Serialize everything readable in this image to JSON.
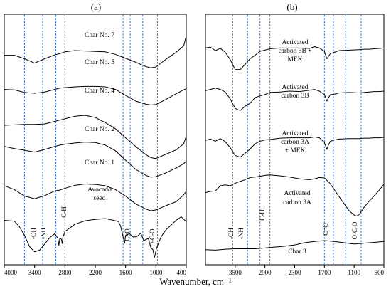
{
  "chart_data": [
    {
      "type": "line",
      "panel_label": "(a)",
      "xlim": [
        4000,
        400
      ],
      "x_reversed": true,
      "x_ticks": [
        "4000",
        "3400",
        "2800",
        "2200",
        "1600",
        "1000",
        "400"
      ],
      "x_tick_values": [
        4000,
        3400,
        2800,
        2200,
        1600,
        1000,
        400
      ],
      "ylabel": "",
      "grid": false,
      "reference_lines_x": [
        3600,
        3240,
        2980,
        2800,
        1650,
        1510,
        1260,
        970
      ],
      "series": [
        {
          "name": "Char No. 7",
          "x": [
            4000,
            3800,
            3600,
            3400,
            3200,
            3000,
            2900,
            2800,
            2600,
            2400,
            2200,
            2000,
            1800,
            1600,
            1400,
            1200,
            1100,
            1000,
            800,
            600,
            450,
            400
          ],
          "y": [
            46.5,
            46.5,
            45.7,
            44.7,
            45.7,
            46.6,
            46.9,
            47.3,
            47.6,
            47.5,
            47.4,
            47.3,
            46.7,
            45.8,
            44.9,
            43.9,
            43.6,
            43.8,
            45.6,
            47.2,
            48.7,
            51
          ]
        },
        {
          "name": "Char No. 5",
          "x": [
            4000,
            3800,
            3600,
            3400,
            3200,
            3000,
            2900,
            2800,
            2600,
            2400,
            2200,
            2000,
            1800,
            1600,
            1400,
            1200,
            1100,
            1000,
            800,
            600,
            450,
            400
          ],
          "y": [
            38.6,
            38.5,
            37.9,
            37.7,
            38,
            38.6,
            38.9,
            39,
            39.2,
            39.3,
            39.3,
            39.2,
            38.6,
            37.2,
            35.9,
            35.2,
            35,
            35.1,
            36.3,
            37.6,
            38.5,
            38.8
          ]
        },
        {
          "name": "Char No. 4",
          "x": [
            4000,
            3800,
            3600,
            3400,
            3200,
            3000,
            2900,
            2800,
            2600,
            2400,
            2200,
            2000,
            1800,
            1600,
            1400,
            1200,
            1100,
            1000,
            800,
            600,
            450,
            400
          ],
          "y": [
            30.3,
            30.4,
            30.5,
            30.5,
            30.6,
            31.2,
            31.5,
            31.8,
            32.4,
            32.6,
            32.1,
            30.9,
            29.5,
            27.4,
            25.4,
            23.5,
            22.8,
            22.6,
            23.6,
            24.6,
            26,
            27.8
          ]
        },
        {
          "name": "Char No. 2",
          "x": [
            4000,
            3800,
            3600,
            3400,
            3200,
            3000,
            2900,
            2800,
            2600,
            2400,
            2200,
            2000,
            1800,
            1600,
            1400,
            1200,
            1100,
            1000,
            800,
            600,
            450,
            400
          ],
          "y": [
            25.4,
            24.9,
            24.5,
            24.1,
            24.7,
            25.4,
            25.7,
            25.9,
            26.2,
            26.4,
            26.3,
            25.7,
            24.4,
            22.2,
            20.1,
            18.7,
            18.3,
            18.4,
            19.3,
            20.4,
            21.4,
            22
          ]
        },
        {
          "name": "Char No. 1",
          "x": [
            4000,
            3800,
            3600,
            3400,
            3200,
            3000,
            2900,
            2800,
            2600,
            2400,
            2200,
            2000,
            1800,
            1600,
            1400,
            1200,
            1100,
            1000,
            800,
            600,
            450,
            400
          ],
          "y": [
            16.3,
            15.4,
            13.9,
            13.3,
            14,
            15.1,
            15.3,
            15.7,
            16.4,
            16.7,
            16.6,
            16.3,
            15.4,
            13.9,
            12.1,
            10.9,
            10.5,
            10.7,
            11.7,
            12.6,
            14.2,
            15
          ]
        },
        {
          "name": "Avocado seed",
          "x": [
            4000,
            3800,
            3700,
            3600,
            3500,
            3400,
            3300,
            3200,
            3100,
            3000,
            2940,
            2920,
            2900,
            2870,
            2853,
            2840,
            2800,
            2600,
            2400,
            2200,
            2000,
            1800,
            1740,
            1700,
            1650,
            1620,
            1600,
            1520,
            1450,
            1380,
            1300,
            1240,
            1150,
            1100,
            1060,
            1030,
            990,
            950,
            900,
            850,
            800,
            700,
            600,
            500,
            400
          ],
          "y": [
            8.3,
            8.1,
            6.8,
            4.8,
            2.2,
            1,
            1.4,
            2.8,
            4.3,
            5.2,
            4.1,
            2.5,
            4.2,
            3.9,
            2.9,
            4.4,
            5.7,
            7.4,
            8.2,
            8.5,
            8.7,
            8.2,
            8,
            7,
            4.5,
            3,
            4.8,
            5.2,
            4.4,
            4.5,
            5.3,
            3.6,
            4.1,
            2,
            1.5,
            -0.3,
            1.7,
            3,
            4.4,
            5.3,
            6.1,
            7.2,
            8.3,
            9.1,
            8
          ]
        }
      ]
    },
    {
      "type": "line",
      "panel_label": "(b)",
      "xlim": [
        4100,
        500
      ],
      "x_reversed": true,
      "x_ticks": [
        "3500",
        "2900",
        "2300",
        "1700",
        "1100",
        "500"
      ],
      "x_tick_values": [
        3500,
        2900,
        2300,
        1700,
        1100,
        500
      ],
      "ylabel": "",
      "grid": false,
      "reference_lines_x": [
        3550,
        3250,
        3000,
        2800,
        1700,
        1520,
        1270,
        960
      ],
      "series": [
        {
          "name": "Activated carbon 3B + MEK",
          "x": [
            4100,
            4000,
            3900,
            3800,
            3700,
            3600,
            3500,
            3400,
            3300,
            3200,
            3100,
            3000,
            2900,
            2800,
            2600,
            2400,
            2200,
            2000,
            1900,
            1800,
            1700,
            1650,
            1620,
            1580,
            1500,
            1400,
            1200,
            1000,
            900,
            800,
            700,
            600,
            500
          ],
          "y": [
            48.2,
            48.4,
            47.6,
            48.1,
            47.2,
            45.5,
            43.2,
            43.2,
            44.4,
            45.7,
            46.5,
            47.4,
            47.7,
            48,
            48.2,
            48.2,
            48.2,
            48.1,
            48.5,
            48.2,
            47.4,
            45.7,
            46.2,
            46.9,
            47.2,
            47.6,
            47.7,
            47.8,
            47.9,
            47.9,
            48,
            48.1,
            48.2
          ]
        },
        {
          "name": "Activated carbon 3B",
          "x": [
            4100,
            4000,
            3900,
            3800,
            3700,
            3600,
            3500,
            3400,
            3300,
            3200,
            3100,
            3000,
            2900,
            2800,
            2600,
            2400,
            2200,
            2000,
            1900,
            1800,
            1700,
            1650,
            1620,
            1580,
            1500,
            1400,
            1200,
            1000,
            900,
            800,
            700,
            600,
            500
          ],
          "y": [
            38.3,
            38.6,
            38.9,
            38.6,
            38,
            36.4,
            34.2,
            33.7,
            34.7,
            35.4,
            36.7,
            37.1,
            37.4,
            37.9,
            38,
            38.2,
            38.1,
            38.4,
            38.6,
            38.2,
            37.4,
            35.9,
            36.6,
            37.4,
            37.5,
            37.8,
            37.9,
            37.8,
            37.9,
            38,
            38.1,
            38.1,
            38.2
          ]
        },
        {
          "name": "Activated carbon 3A + MEK",
          "x": [
            4100,
            4000,
            3900,
            3800,
            3700,
            3600,
            3500,
            3400,
            3300,
            3200,
            3100,
            3000,
            2900,
            2800,
            2600,
            2400,
            2200,
            2000,
            1900,
            1800,
            1700,
            1650,
            1620,
            1580,
            1500,
            1400,
            1200,
            1000,
            900,
            800,
            700,
            600,
            500
          ],
          "y": [
            26.8,
            27.1,
            26.6,
            27.2,
            26.5,
            25.1,
            23.3,
            22.9,
            23.8,
            24.8,
            26,
            26.6,
            26.9,
            27,
            27.3,
            27.4,
            27.4,
            27.4,
            27.6,
            27.4,
            26.3,
            24.7,
            25.7,
            26.6,
            26.9,
            27.1,
            27.2,
            27.2,
            27.3,
            27.3,
            27.4,
            27.4,
            27.5
          ]
        },
        {
          "name": "Activated carbon 3A",
          "x": [
            4100,
            4000,
            3900,
            3800,
            3700,
            3600,
            3500,
            3400,
            3300,
            3200,
            3100,
            3000,
            2900,
            2800,
            2600,
            2400,
            2200,
            2000,
            1900,
            1800,
            1700,
            1600,
            1500,
            1400,
            1300,
            1200,
            1100,
            1050,
            1000,
            900,
            800,
            700,
            600,
            500
          ],
          "y": [
            14.7,
            15,
            15.1,
            16.3,
            16.5,
            16.3,
            16.9,
            17.3,
            17.7,
            18.2,
            18.3,
            18.5,
            18.7,
            18.8,
            18.6,
            18.3,
            17.9,
            17.7,
            17.9,
            18.2,
            18.1,
            17,
            15.4,
            13.7,
            12.1,
            10.5,
            9.5,
            9.3,
            9.6,
            11.3,
            12.7,
            13.9,
            15.2,
            16.6
          ]
        },
        {
          "name": "Char 3",
          "x": [
            4100,
            3900,
            3700,
            3500,
            3300,
            3100,
            2900,
            2700,
            2500,
            2300,
            2100,
            1900,
            1700,
            1500,
            1300,
            1100,
            900,
            700,
            500
          ],
          "y": [
            1.5,
            1.4,
            1.6,
            1.7,
            1.7,
            1.7,
            1.9,
            2.1,
            2.3,
            2.6,
            3.1,
            3.4,
            3.6,
            3.4,
            3.1,
            2.8,
            3,
            3.2,
            3.4
          ]
        }
      ]
    }
  ],
  "figure": {
    "panel_a_label": "(a)",
    "panel_b_label": "(b)",
    "xlabel": "Wavenumber, cm⁻¹",
    "panel_a": {
      "curve_labels": [
        "Char No. 7",
        "Char No. 5",
        "Char No. 4",
        "Char No. 2",
        "Char No. 1",
        "Avocado",
        "seed"
      ],
      "group_labels": [
        "-OH",
        "-NH",
        "C-H",
        "C=O",
        "O-C-O"
      ]
    },
    "panel_b": {
      "curve_labels": [
        "Activated",
        "carbon 3B +",
        "MEK",
        "Activated",
        "carbon 3B",
        "Activated",
        "carbon 3A",
        "+ MEK",
        "Activated",
        "carbon 3A",
        "Char 3"
      ],
      "group_labels": [
        "-OH",
        "-NH",
        "C-H",
        "C=O",
        "O-C-O"
      ]
    }
  },
  "colors": {
    "axis": "#000000",
    "curve": "#000000",
    "reference_line": "#2e6fd1",
    "text": "#000000"
  }
}
